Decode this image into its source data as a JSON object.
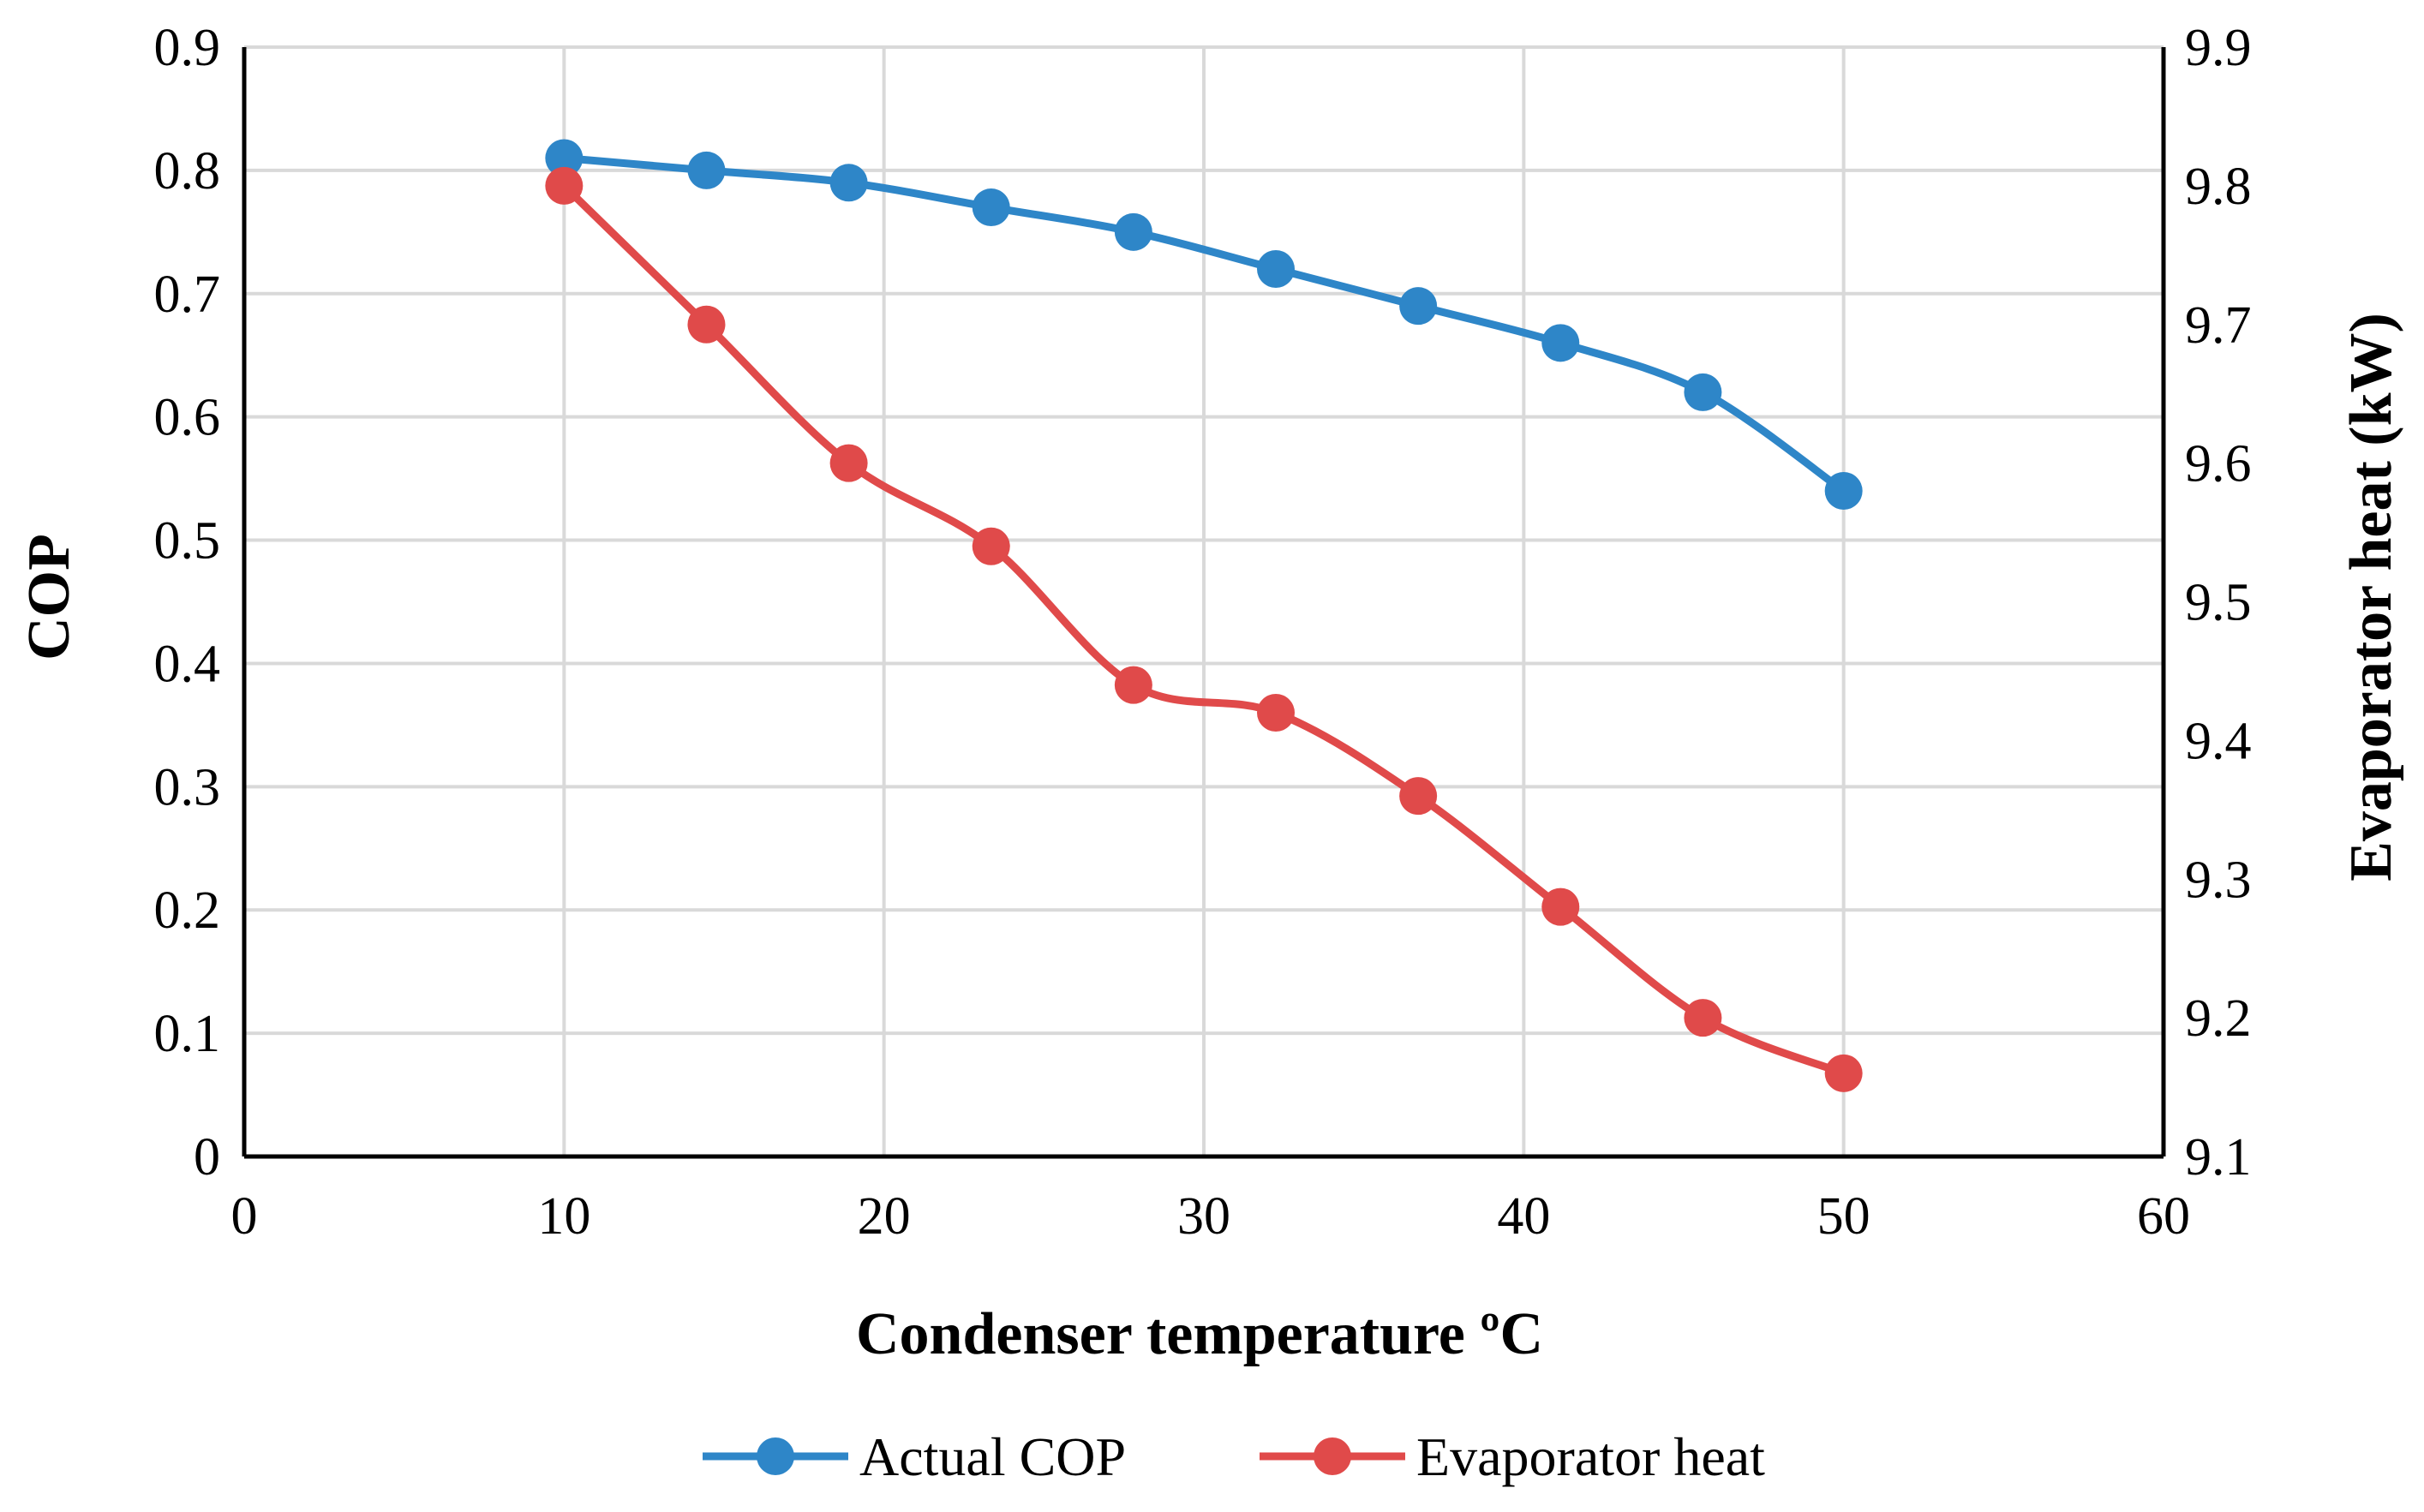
{
  "chart_data": {
    "type": "line",
    "title": "",
    "xlabel": "Condenser temperature ºC",
    "ylabel": "COP",
    "y2label": "Evaporator heat (kW)",
    "xlim": [
      0,
      60
    ],
    "ylim": [
      0,
      0.9
    ],
    "y2lim": [
      9.1,
      9.9
    ],
    "xticks": [
      "0",
      "10",
      "20",
      "30",
      "40",
      "50",
      "60"
    ],
    "yticks": [
      "0",
      "0.1",
      "0.2",
      "0.3",
      "0.4",
      "0.5",
      "0.6",
      "0.7",
      "0.8",
      "0.9"
    ],
    "y2ticks": [
      "9.1",
      "9.2",
      "9.3",
      "9.4",
      "9.5",
      "9.6",
      "9.7",
      "9.8",
      "9.9"
    ],
    "grid": true,
    "legend_position": "bottom",
    "series": [
      {
        "name": "Actual COP",
        "axis": "left",
        "color": "#2E86C8",
        "x": [
          10,
          14.45,
          18.9,
          23.35,
          27.8,
          32.25,
          36.7,
          41.15,
          45.6,
          50
        ],
        "values": [
          0.81,
          0.8,
          0.79,
          0.77,
          0.75,
          0.72,
          0.69,
          0.66,
          0.62,
          0.54
        ]
      },
      {
        "name": "Evaporator heat",
        "axis": "right",
        "color": "#E04A4A",
        "x": [
          10,
          14.45,
          18.9,
          23.35,
          27.8,
          32.25,
          36.7,
          41.15,
          45.6,
          50
        ],
        "values": [
          9.8,
          9.7,
          9.6,
          9.54,
          9.44,
          9.42,
          9.36,
          9.28,
          9.2,
          9.16
        ]
      }
    ]
  }
}
